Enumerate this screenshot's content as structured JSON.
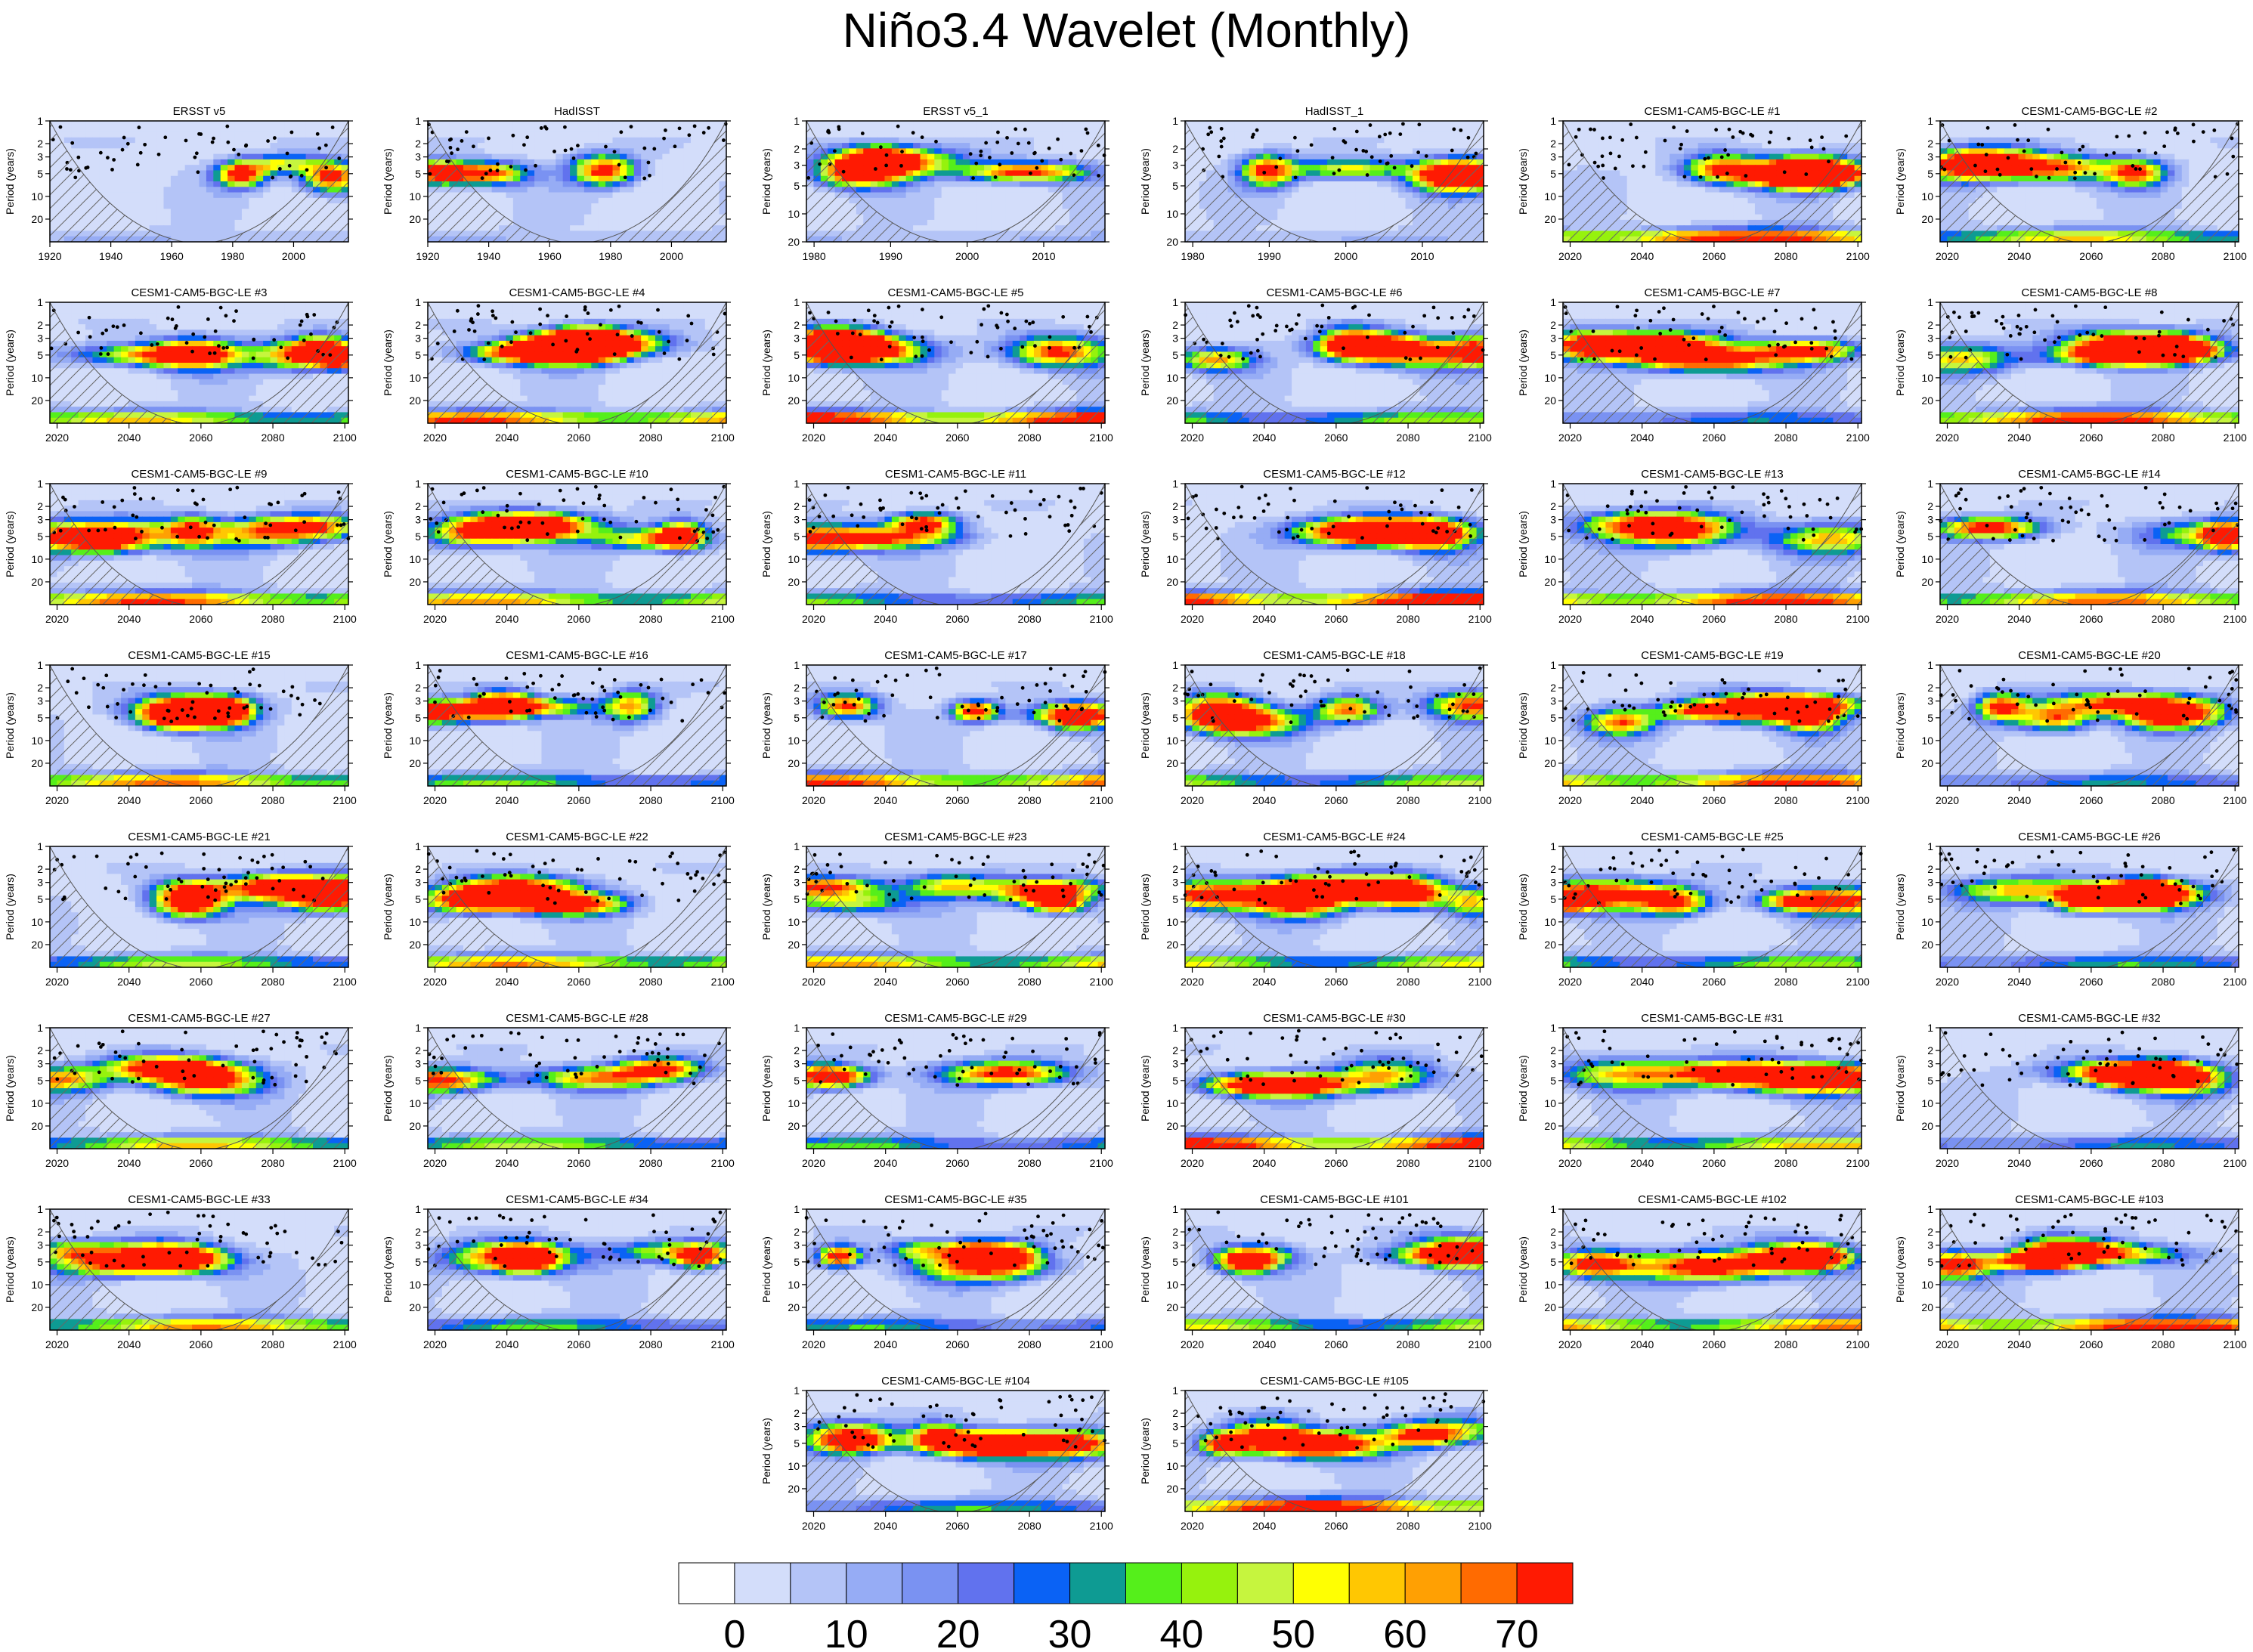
{
  "figure": {
    "title": "Niño3.4 Wavelet (Monthly)"
  },
  "chart_data": {
    "type": "heatmap",
    "title": "Niño3.4 Wavelet (Monthly)",
    "ylabel": "Period (years)",
    "y_scale": "log",
    "y_ticks": [
      1,
      2,
      3,
      5,
      10,
      20
    ],
    "significance_markers": "black dots",
    "cone_of_influence": "hatched",
    "colorbar": {
      "ticks": [
        0,
        10,
        20,
        30,
        40,
        50,
        60,
        70
      ],
      "levels": [
        0,
        5,
        10,
        15,
        20,
        25,
        30,
        35,
        40,
        45,
        50,
        55,
        60,
        65,
        70
      ],
      "colors": [
        "#ffffff",
        "#d3ddfa",
        "#b4c4f7",
        "#96acf5",
        "#7a92f2",
        "#6172ee",
        "#0a62f5",
        "#0e9b93",
        "#55ef1b",
        "#96f20d",
        "#c6f53e",
        "#ffff02",
        "#ffc702",
        "#ffa003",
        "#ff6b01",
        "#ff1a02"
      ]
    },
    "panels": [
      {
        "title": "ERSST v5",
        "x_ticks": [
          1920,
          1940,
          1960,
          1980,
          2000
        ],
        "x_range": [
          1920,
          2018
        ],
        "y_range": [
          1,
          40
        ]
      },
      {
        "title": "HadISST",
        "x_ticks": [
          1920,
          1940,
          1960,
          1980,
          2000
        ],
        "x_range": [
          1920,
          2018
        ],
        "y_range": [
          1,
          40
        ]
      },
      {
        "title": "ERSST v5_1",
        "x_ticks": [
          1980,
          1990,
          2000,
          2010
        ],
        "x_range": [
          1979,
          2018
        ],
        "y_range": [
          1,
          20
        ]
      },
      {
        "title": "HadISST_1",
        "x_ticks": [
          1980,
          1990,
          2000,
          2010
        ],
        "x_range": [
          1979,
          2018
        ],
        "y_range": [
          1,
          20
        ]
      },
      {
        "title": "CESM1-CAM5-BGC-LE #1",
        "x_ticks": [
          2020,
          2040,
          2060,
          2080,
          2100
        ],
        "x_range": [
          2018,
          2101
        ],
        "y_range": [
          1,
          40
        ]
      },
      {
        "title": "CESM1-CAM5-BGC-LE #2",
        "x_ticks": [
          2020,
          2040,
          2060,
          2080,
          2100
        ],
        "x_range": [
          2018,
          2101
        ],
        "y_range": [
          1,
          40
        ]
      },
      {
        "title": "CESM1-CAM5-BGC-LE #3",
        "x_ticks": [
          2020,
          2040,
          2060,
          2080,
          2100
        ],
        "x_range": [
          2018,
          2101
        ],
        "y_range": [
          1,
          40
        ]
      },
      {
        "title": "CESM1-CAM5-BGC-LE #4",
        "x_ticks": [
          2020,
          2040,
          2060,
          2080,
          2100
        ],
        "x_range": [
          2018,
          2101
        ],
        "y_range": [
          1,
          40
        ]
      },
      {
        "title": "CESM1-CAM5-BGC-LE #5",
        "x_ticks": [
          2020,
          2040,
          2060,
          2080,
          2100
        ],
        "x_range": [
          2018,
          2101
        ],
        "y_range": [
          1,
          40
        ]
      },
      {
        "title": "CESM1-CAM5-BGC-LE #6",
        "x_ticks": [
          2020,
          2040,
          2060,
          2080,
          2100
        ],
        "x_range": [
          2018,
          2101
        ],
        "y_range": [
          1,
          40
        ]
      },
      {
        "title": "CESM1-CAM5-BGC-LE #7",
        "x_ticks": [
          2020,
          2040,
          2060,
          2080,
          2100
        ],
        "x_range": [
          2018,
          2101
        ],
        "y_range": [
          1,
          40
        ]
      },
      {
        "title": "CESM1-CAM5-BGC-LE #8",
        "x_ticks": [
          2020,
          2040,
          2060,
          2080,
          2100
        ],
        "x_range": [
          2018,
          2101
        ],
        "y_range": [
          1,
          40
        ]
      },
      {
        "title": "CESM1-CAM5-BGC-LE #9",
        "x_ticks": [
          2020,
          2040,
          2060,
          2080,
          2100
        ],
        "x_range": [
          2018,
          2101
        ],
        "y_range": [
          1,
          40
        ]
      },
      {
        "title": "CESM1-CAM5-BGC-LE #10",
        "x_ticks": [
          2020,
          2040,
          2060,
          2080,
          2100
        ],
        "x_range": [
          2018,
          2101
        ],
        "y_range": [
          1,
          40
        ]
      },
      {
        "title": "CESM1-CAM5-BGC-LE #11",
        "x_ticks": [
          2020,
          2040,
          2060,
          2080,
          2100
        ],
        "x_range": [
          2018,
          2101
        ],
        "y_range": [
          1,
          40
        ]
      },
      {
        "title": "CESM1-CAM5-BGC-LE #12",
        "x_ticks": [
          2020,
          2040,
          2060,
          2080,
          2100
        ],
        "x_range": [
          2018,
          2101
        ],
        "y_range": [
          1,
          40
        ]
      },
      {
        "title": "CESM1-CAM5-BGC-LE #13",
        "x_ticks": [
          2020,
          2040,
          2060,
          2080,
          2100
        ],
        "x_range": [
          2018,
          2101
        ],
        "y_range": [
          1,
          40
        ]
      },
      {
        "title": "CESM1-CAM5-BGC-LE #14",
        "x_ticks": [
          2020,
          2040,
          2060,
          2080,
          2100
        ],
        "x_range": [
          2018,
          2101
        ],
        "y_range": [
          1,
          40
        ]
      },
      {
        "title": "CESM1-CAM5-BGC-LE #15",
        "x_ticks": [
          2020,
          2040,
          2060,
          2080,
          2100
        ],
        "x_range": [
          2018,
          2101
        ],
        "y_range": [
          1,
          40
        ]
      },
      {
        "title": "CESM1-CAM5-BGC-LE #16",
        "x_ticks": [
          2020,
          2040,
          2060,
          2080,
          2100
        ],
        "x_range": [
          2018,
          2101
        ],
        "y_range": [
          1,
          40
        ]
      },
      {
        "title": "CESM1-CAM5-BGC-LE #17",
        "x_ticks": [
          2020,
          2040,
          2060,
          2080,
          2100
        ],
        "x_range": [
          2018,
          2101
        ],
        "y_range": [
          1,
          40
        ]
      },
      {
        "title": "CESM1-CAM5-BGC-LE #18",
        "x_ticks": [
          2020,
          2040,
          2060,
          2080,
          2100
        ],
        "x_range": [
          2018,
          2101
        ],
        "y_range": [
          1,
          40
        ]
      },
      {
        "title": "CESM1-CAM5-BGC-LE #19",
        "x_ticks": [
          2020,
          2040,
          2060,
          2080,
          2100
        ],
        "x_range": [
          2018,
          2101
        ],
        "y_range": [
          1,
          40
        ]
      },
      {
        "title": "CESM1-CAM5-BGC-LE #20",
        "x_ticks": [
          2020,
          2040,
          2060,
          2080,
          2100
        ],
        "x_range": [
          2018,
          2101
        ],
        "y_range": [
          1,
          40
        ]
      },
      {
        "title": "CESM1-CAM5-BGC-LE #21",
        "x_ticks": [
          2020,
          2040,
          2060,
          2080,
          2100
        ],
        "x_range": [
          2018,
          2101
        ],
        "y_range": [
          1,
          40
        ]
      },
      {
        "title": "CESM1-CAM5-BGC-LE #22",
        "x_ticks": [
          2020,
          2040,
          2060,
          2080,
          2100
        ],
        "x_range": [
          2018,
          2101
        ],
        "y_range": [
          1,
          40
        ]
      },
      {
        "title": "CESM1-CAM5-BGC-LE #23",
        "x_ticks": [
          2020,
          2040,
          2060,
          2080,
          2100
        ],
        "x_range": [
          2018,
          2101
        ],
        "y_range": [
          1,
          40
        ]
      },
      {
        "title": "CESM1-CAM5-BGC-LE #24",
        "x_ticks": [
          2020,
          2040,
          2060,
          2080,
          2100
        ],
        "x_range": [
          2018,
          2101
        ],
        "y_range": [
          1,
          40
        ]
      },
      {
        "title": "CESM1-CAM5-BGC-LE #25",
        "x_ticks": [
          2020,
          2040,
          2060,
          2080,
          2100
        ],
        "x_range": [
          2018,
          2101
        ],
        "y_range": [
          1,
          40
        ]
      },
      {
        "title": "CESM1-CAM5-BGC-LE #26",
        "x_ticks": [
          2020,
          2040,
          2060,
          2080,
          2100
        ],
        "x_range": [
          2018,
          2101
        ],
        "y_range": [
          1,
          40
        ]
      },
      {
        "title": "CESM1-CAM5-BGC-LE #27",
        "x_ticks": [
          2020,
          2040,
          2060,
          2080,
          2100
        ],
        "x_range": [
          2018,
          2101
        ],
        "y_range": [
          1,
          40
        ]
      },
      {
        "title": "CESM1-CAM5-BGC-LE #28",
        "x_ticks": [
          2020,
          2040,
          2060,
          2080,
          2100
        ],
        "x_range": [
          2018,
          2101
        ],
        "y_range": [
          1,
          40
        ]
      },
      {
        "title": "CESM1-CAM5-BGC-LE #29",
        "x_ticks": [
          2020,
          2040,
          2060,
          2080,
          2100
        ],
        "x_range": [
          2018,
          2101
        ],
        "y_range": [
          1,
          40
        ]
      },
      {
        "title": "CESM1-CAM5-BGC-LE #30",
        "x_ticks": [
          2020,
          2040,
          2060,
          2080,
          2100
        ],
        "x_range": [
          2018,
          2101
        ],
        "y_range": [
          1,
          40
        ]
      },
      {
        "title": "CESM1-CAM5-BGC-LE #31",
        "x_ticks": [
          2020,
          2040,
          2060,
          2080,
          2100
        ],
        "x_range": [
          2018,
          2101
        ],
        "y_range": [
          1,
          40
        ]
      },
      {
        "title": "CESM1-CAM5-BGC-LE #32",
        "x_ticks": [
          2020,
          2040,
          2060,
          2080,
          2100
        ],
        "x_range": [
          2018,
          2101
        ],
        "y_range": [
          1,
          40
        ]
      },
      {
        "title": "CESM1-CAM5-BGC-LE #33",
        "x_ticks": [
          2020,
          2040,
          2060,
          2080,
          2100
        ],
        "x_range": [
          2018,
          2101
        ],
        "y_range": [
          1,
          40
        ]
      },
      {
        "title": "CESM1-CAM5-BGC-LE #34",
        "x_ticks": [
          2020,
          2040,
          2060,
          2080,
          2100
        ],
        "x_range": [
          2018,
          2101
        ],
        "y_range": [
          1,
          40
        ]
      },
      {
        "title": "CESM1-CAM5-BGC-LE #35",
        "x_ticks": [
          2020,
          2040,
          2060,
          2080,
          2100
        ],
        "x_range": [
          2018,
          2101
        ],
        "y_range": [
          1,
          40
        ]
      },
      {
        "title": "CESM1-CAM5-BGC-LE #101",
        "x_ticks": [
          2020,
          2040,
          2060,
          2080,
          2100
        ],
        "x_range": [
          2018,
          2101
        ],
        "y_range": [
          1,
          40
        ]
      },
      {
        "title": "CESM1-CAM5-BGC-LE #102",
        "x_ticks": [
          2020,
          2040,
          2060,
          2080,
          2100
        ],
        "x_range": [
          2018,
          2101
        ],
        "y_range": [
          1,
          40
        ]
      },
      {
        "title": "CESM1-CAM5-BGC-LE #103",
        "x_ticks": [
          2020,
          2040,
          2060,
          2080,
          2100
        ],
        "x_range": [
          2018,
          2101
        ],
        "y_range": [
          1,
          40
        ]
      },
      {
        "title": "CESM1-CAM5-BGC-LE #104",
        "x_ticks": [
          2020,
          2040,
          2060,
          2080,
          2100
        ],
        "x_range": [
          2018,
          2101
        ],
        "y_range": [
          1,
          40
        ]
      },
      {
        "title": "CESM1-CAM5-BGC-LE #105",
        "x_ticks": [
          2020,
          2040,
          2060,
          2080,
          2100
        ],
        "x_range": [
          2018,
          2101
        ],
        "y_range": [
          1,
          40
        ]
      }
    ]
  }
}
